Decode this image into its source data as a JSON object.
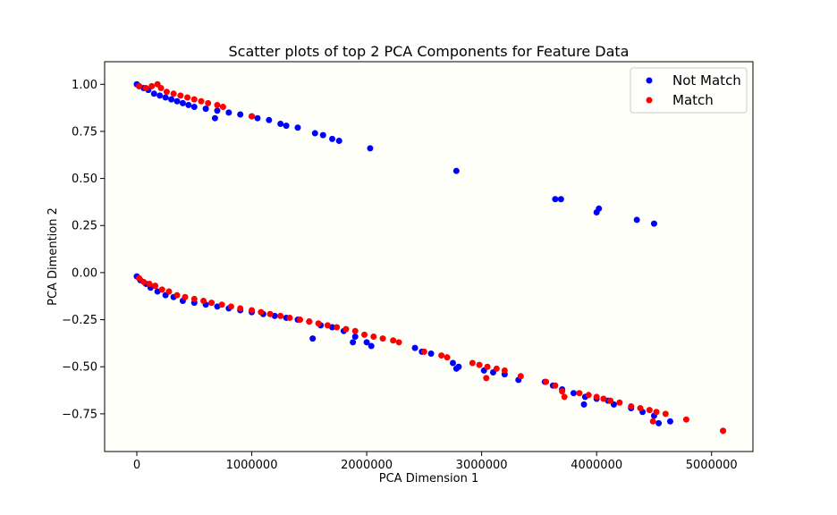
{
  "chart_data": {
    "type": "scatter",
    "title": "Scatter plots of top 2 PCA Components for Feature Data",
    "xlabel": "PCA Dimension 1",
    "ylabel": "PCA Dimention 2",
    "xlim": [
      -280000,
      5360000
    ],
    "ylim": [
      -0.95,
      1.12
    ],
    "xticks": [
      0,
      1000000,
      2000000,
      3000000,
      4000000,
      5000000
    ],
    "xtick_labels": [
      "0",
      "1000000",
      "2000000",
      "3000000",
      "4000000",
      "5000000"
    ],
    "yticks": [
      -0.75,
      -0.5,
      -0.25,
      0.0,
      0.25,
      0.5,
      0.75,
      1.0
    ],
    "ytick_labels": [
      "−0.75",
      "−0.50",
      "−0.25",
      "0.00",
      "0.25",
      "0.50",
      "0.75",
      "1.00"
    ],
    "background": "#fffffa",
    "grid": false,
    "legend_position": "top-right",
    "series": [
      {
        "name": "Not Match",
        "color": "#0000ff",
        "points": [
          [
            0,
            1.0
          ],
          [
            20000,
            0.99
          ],
          [
            60000,
            0.98
          ],
          [
            100000,
            0.97
          ],
          [
            150000,
            0.95
          ],
          [
            200000,
            0.94
          ],
          [
            250000,
            0.93
          ],
          [
            300000,
            0.92
          ],
          [
            350000,
            0.91
          ],
          [
            400000,
            0.9
          ],
          [
            450000,
            0.89
          ],
          [
            500000,
            0.88
          ],
          [
            600000,
            0.87
          ],
          [
            700000,
            0.86
          ],
          [
            800000,
            0.85
          ],
          [
            900000,
            0.84
          ],
          [
            1000000,
            0.83
          ],
          [
            1050000,
            0.82
          ],
          [
            1150000,
            0.81
          ],
          [
            1250000,
            0.79
          ],
          [
            1300000,
            0.78
          ],
          [
            1400000,
            0.77
          ],
          [
            1550000,
            0.74
          ],
          [
            1620000,
            0.73
          ],
          [
            1700000,
            0.71
          ],
          [
            1760000,
            0.7
          ],
          [
            2030000,
            0.66
          ],
          [
            2780000,
            0.54
          ],
          [
            3640000,
            0.39
          ],
          [
            3690000,
            0.39
          ],
          [
            4000000,
            0.32
          ],
          [
            4020000,
            0.34
          ],
          [
            4350000,
            0.28
          ],
          [
            4500000,
            0.26
          ],
          [
            680000,
            0.82
          ],
          [
            0,
            -0.02
          ],
          [
            30000,
            -0.04
          ],
          [
            80000,
            -0.06
          ],
          [
            120000,
            -0.08
          ],
          [
            180000,
            -0.1
          ],
          [
            250000,
            -0.12
          ],
          [
            320000,
            -0.13
          ],
          [
            400000,
            -0.15
          ],
          [
            500000,
            -0.16
          ],
          [
            600000,
            -0.17
          ],
          [
            700000,
            -0.18
          ],
          [
            800000,
            -0.19
          ],
          [
            900000,
            -0.2
          ],
          [
            1000000,
            -0.21
          ],
          [
            1100000,
            -0.22
          ],
          [
            1200000,
            -0.23
          ],
          [
            1300000,
            -0.24
          ],
          [
            1400000,
            -0.25
          ],
          [
            1500000,
            -0.26
          ],
          [
            1600000,
            -0.28
          ],
          [
            1700000,
            -0.29
          ],
          [
            1800000,
            -0.31
          ],
          [
            1900000,
            -0.34
          ],
          [
            2000000,
            -0.37
          ],
          [
            2040000,
            -0.39
          ],
          [
            1530000,
            -0.35
          ],
          [
            1880000,
            -0.37
          ],
          [
            2420000,
            -0.4
          ],
          [
            2480000,
            -0.42
          ],
          [
            2560000,
            -0.43
          ],
          [
            2750000,
            -0.48
          ],
          [
            2800000,
            -0.5
          ],
          [
            2780000,
            -0.51
          ],
          [
            3020000,
            -0.52
          ],
          [
            3100000,
            -0.53
          ],
          [
            3200000,
            -0.54
          ],
          [
            3320000,
            -0.57
          ],
          [
            3550000,
            -0.58
          ],
          [
            3620000,
            -0.6
          ],
          [
            3700000,
            -0.62
          ],
          [
            3800000,
            -0.64
          ],
          [
            3900000,
            -0.66
          ],
          [
            3890000,
            -0.7
          ],
          [
            4000000,
            -0.67
          ],
          [
            4100000,
            -0.68
          ],
          [
            4150000,
            -0.7
          ],
          [
            4300000,
            -0.72
          ],
          [
            4400000,
            -0.74
          ],
          [
            4500000,
            -0.76
          ],
          [
            4540000,
            -0.8
          ],
          [
            4640000,
            -0.79
          ],
          [
            5100000,
            -0.84
          ]
        ]
      },
      {
        "name": "Match",
        "color": "#ff0000",
        "points": [
          [
            20000,
            0.99
          ],
          [
            80000,
            0.98
          ],
          [
            130000,
            0.99
          ],
          [
            180000,
            1.0
          ],
          [
            210000,
            0.98
          ],
          [
            260000,
            0.96
          ],
          [
            320000,
            0.95
          ],
          [
            380000,
            0.94
          ],
          [
            440000,
            0.93
          ],
          [
            500000,
            0.92
          ],
          [
            560000,
            0.91
          ],
          [
            620000,
            0.9
          ],
          [
            700000,
            0.89
          ],
          [
            750000,
            0.88
          ],
          [
            1000000,
            0.83
          ],
          [
            20000,
            -0.03
          ],
          [
            60000,
            -0.05
          ],
          [
            110000,
            -0.06
          ],
          [
            160000,
            -0.07
          ],
          [
            220000,
            -0.09
          ],
          [
            280000,
            -0.1
          ],
          [
            350000,
            -0.12
          ],
          [
            420000,
            -0.13
          ],
          [
            500000,
            -0.14
          ],
          [
            580000,
            -0.15
          ],
          [
            650000,
            -0.16
          ],
          [
            740000,
            -0.17
          ],
          [
            820000,
            -0.18
          ],
          [
            900000,
            -0.19
          ],
          [
            1000000,
            -0.2
          ],
          [
            1080000,
            -0.21
          ],
          [
            1160000,
            -0.22
          ],
          [
            1250000,
            -0.23
          ],
          [
            1330000,
            -0.24
          ],
          [
            1420000,
            -0.25
          ],
          [
            1500000,
            -0.26
          ],
          [
            1580000,
            -0.27
          ],
          [
            1660000,
            -0.28
          ],
          [
            1740000,
            -0.29
          ],
          [
            1820000,
            -0.3
          ],
          [
            1900000,
            -0.31
          ],
          [
            1980000,
            -0.33
          ],
          [
            2060000,
            -0.34
          ],
          [
            2140000,
            -0.35
          ],
          [
            2230000,
            -0.36
          ],
          [
            2280000,
            -0.37
          ],
          [
            2500000,
            -0.42
          ],
          [
            2650000,
            -0.44
          ],
          [
            2700000,
            -0.45
          ],
          [
            2920000,
            -0.48
          ],
          [
            2980000,
            -0.49
          ],
          [
            3050000,
            -0.5
          ],
          [
            3130000,
            -0.51
          ],
          [
            3200000,
            -0.52
          ],
          [
            3040000,
            -0.56
          ],
          [
            3340000,
            -0.55
          ],
          [
            3560000,
            -0.58
          ],
          [
            3640000,
            -0.6
          ],
          [
            3700000,
            -0.63
          ],
          [
            3720000,
            -0.66
          ],
          [
            3850000,
            -0.64
          ],
          [
            3930000,
            -0.65
          ],
          [
            4000000,
            -0.66
          ],
          [
            4060000,
            -0.67
          ],
          [
            4120000,
            -0.68
          ],
          [
            4200000,
            -0.69
          ],
          [
            4300000,
            -0.71
          ],
          [
            4380000,
            -0.72
          ],
          [
            4460000,
            -0.73
          ],
          [
            4520000,
            -0.74
          ],
          [
            4600000,
            -0.75
          ],
          [
            4780000,
            -0.78
          ],
          [
            4490000,
            -0.79
          ],
          [
            5100000,
            -0.84
          ]
        ]
      }
    ]
  }
}
